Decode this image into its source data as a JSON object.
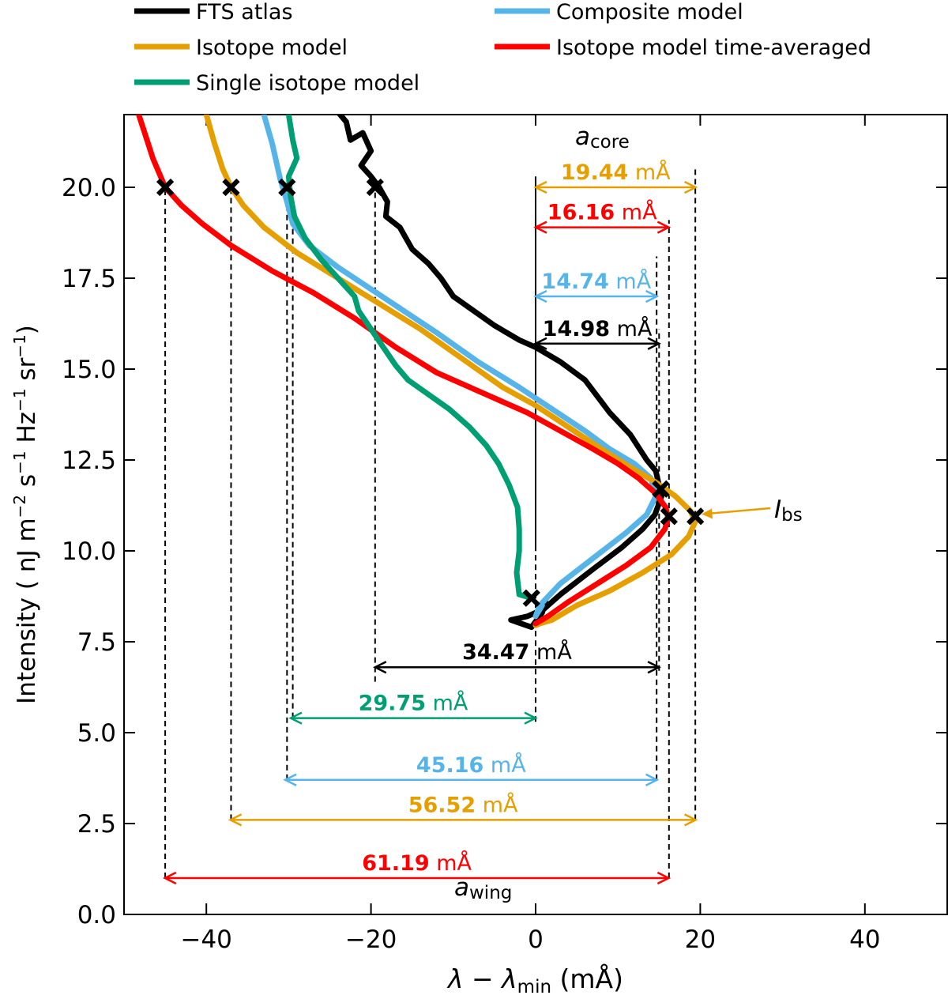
{
  "chart_data": {
    "type": "line",
    "title": "",
    "xlabel": "λ − λ_min (mÅ)",
    "xlabel_parts": {
      "lambda": "λ",
      "minus": " − ",
      "lambda2": "λ",
      "sub": "min",
      "unit": " (mÅ)"
    },
    "ylabel": "Intensity ( nJ m⁻² s⁻¹ Hz⁻¹ sr⁻¹)",
    "ylabel_parts": {
      "pre": "Intensity ( nJ m",
      "e1": "−2",
      "p2": " s",
      "e2": "−1",
      "p3": " Hz",
      "e3": "−1",
      "p4": " sr",
      "e4": "−1",
      "post": ")"
    },
    "xlim": [
      -50,
      50
    ],
    "ylim": [
      0,
      22
    ],
    "xticks": [
      -40,
      -20,
      0,
      20,
      40
    ],
    "xtick_labels": [
      "−40",
      "−20",
      "0",
      "20",
      "40"
    ],
    "yticks": [
      0,
      2.5,
      5,
      7.5,
      10,
      12.5,
      15,
      17.5,
      20
    ],
    "ytick_labels": [
      "0.0",
      "2.5",
      "5.0",
      "7.5",
      "10.0",
      "12.5",
      "15.0",
      "17.5",
      "20.0"
    ],
    "grid": false,
    "legend_position": "top (above plot), two columns",
    "series": [
      {
        "name": "FTS atlas",
        "color": "#000000",
        "points": [
          [
            -24.5,
            22.2
          ],
          [
            -23,
            21.8
          ],
          [
            -22.5,
            21.3
          ],
          [
            -21,
            21.5
          ],
          [
            -20,
            21
          ],
          [
            -21.2,
            20.6
          ],
          [
            -20,
            20.3
          ],
          [
            -19,
            20
          ],
          [
            -18,
            19.6
          ],
          [
            -18.2,
            19.2
          ],
          [
            -16.5,
            18.9
          ],
          [
            -15,
            18.3
          ],
          [
            -13,
            17.9
          ],
          [
            -11.5,
            17.5
          ],
          [
            -10,
            17
          ],
          [
            -7.5,
            16.6
          ],
          [
            -5,
            16.2
          ],
          [
            -2,
            15.8
          ],
          [
            0,
            15.6
          ],
          [
            3,
            15.2
          ],
          [
            6,
            14.7
          ],
          [
            9,
            13.8
          ],
          [
            11.5,
            13.2
          ],
          [
            13.5,
            12.5
          ],
          [
            14.6,
            12.2
          ],
          [
            15,
            11.8
          ],
          [
            15.3,
            11.5
          ],
          [
            14.5,
            11
          ],
          [
            13,
            10.6
          ],
          [
            10.5,
            10.1
          ],
          [
            7,
            9.5
          ],
          [
            3,
            8.8
          ],
          [
            1,
            8.4
          ],
          [
            -1,
            8.2
          ],
          [
            -3,
            8.1
          ],
          [
            -0.5,
            7.9
          ],
          [
            0.8,
            8.3
          ],
          [
            1.2,
            8.6
          ]
        ]
      },
      {
        "name": "Composite model",
        "color": "#56B4E9",
        "points": [
          [
            -33,
            22
          ],
          [
            -32,
            21.2
          ],
          [
            -31,
            20.2
          ],
          [
            -30.2,
            19.6
          ],
          [
            -29.5,
            19
          ],
          [
            -27.5,
            18.4
          ],
          [
            -24,
            17.8
          ],
          [
            -20,
            17.2
          ],
          [
            -16,
            16.6
          ],
          [
            -12,
            16
          ],
          [
            -7,
            15.2
          ],
          [
            -2,
            14.5
          ],
          [
            2,
            13.9
          ],
          [
            6,
            13.3
          ],
          [
            9,
            12.8
          ],
          [
            12,
            12.4
          ],
          [
            14,
            12
          ],
          [
            14.6,
            11.5
          ],
          [
            13.5,
            11
          ],
          [
            11,
            10.5
          ],
          [
            7,
            9.8
          ],
          [
            3,
            9.1
          ],
          [
            0.5,
            8.5
          ],
          [
            0,
            8.2
          ],
          [
            0.8,
            8.5
          ]
        ]
      },
      {
        "name": "Isotope model",
        "color": "#E69F00",
        "points": [
          [
            -40,
            22
          ],
          [
            -39,
            21.2
          ],
          [
            -38,
            20.5
          ],
          [
            -37,
            20
          ],
          [
            -35.5,
            19.5
          ],
          [
            -33,
            18.9
          ],
          [
            -29,
            18.2
          ],
          [
            -24,
            17.5
          ],
          [
            -19,
            16.8
          ],
          [
            -14,
            16.1
          ],
          [
            -9,
            15.3
          ],
          [
            -4,
            14.5
          ],
          [
            0,
            14
          ],
          [
            4,
            13.4
          ],
          [
            8,
            12.8
          ],
          [
            11.5,
            12.3
          ],
          [
            14.5,
            11.9
          ],
          [
            17,
            11.5
          ],
          [
            18.8,
            11.1
          ],
          [
            19.4,
            10.8
          ],
          [
            18.6,
            10.4
          ],
          [
            16.5,
            9.9
          ],
          [
            13,
            9.4
          ],
          [
            9,
            8.9
          ],
          [
            5,
            8.5
          ],
          [
            2,
            8.1
          ],
          [
            0.5,
            8
          ],
          [
            0,
            7.95
          ]
        ]
      },
      {
        "name": "Isotope model time-averaged",
        "color": "#FF0000",
        "points": [
          [
            -48.5,
            22.2
          ],
          [
            -47.5,
            21.5
          ],
          [
            -46.5,
            20.8
          ],
          [
            -45,
            20
          ],
          [
            -43,
            19.5
          ],
          [
            -40.5,
            19
          ],
          [
            -37,
            18.4
          ],
          [
            -32,
            17.7
          ],
          [
            -27,
            17.1
          ],
          [
            -22,
            16.4
          ],
          [
            -17,
            15.6
          ],
          [
            -12,
            14.9
          ],
          [
            -6,
            14.3
          ],
          [
            -1,
            13.8
          ],
          [
            3,
            13.3
          ],
          [
            7,
            12.8
          ],
          [
            10,
            12.4
          ],
          [
            12.5,
            12
          ],
          [
            14.5,
            11.6
          ],
          [
            15.8,
            11.2
          ],
          [
            16.1,
            10.9
          ],
          [
            15.7,
            10.6
          ],
          [
            14,
            10.1
          ],
          [
            11,
            9.6
          ],
          [
            7.5,
            9.1
          ],
          [
            4,
            8.6
          ],
          [
            1.5,
            8.2
          ],
          [
            0,
            8
          ]
        ]
      },
      {
        "name": "Single isotope model",
        "color": "#009E73",
        "points": [
          [
            -30,
            22
          ],
          [
            -29.5,
            21.3
          ],
          [
            -29,
            20.8
          ],
          [
            -30,
            20.3
          ],
          [
            -29.8,
            19.8
          ],
          [
            -29.3,
            19.2
          ],
          [
            -28,
            18.6
          ],
          [
            -26,
            18
          ],
          [
            -24,
            17.5
          ],
          [
            -22,
            17
          ],
          [
            -21.5,
            16.6
          ],
          [
            -20,
            16.1
          ],
          [
            -18.5,
            15.6
          ],
          [
            -17,
            15.1
          ],
          [
            -15.5,
            14.7
          ],
          [
            -13,
            14.3
          ],
          [
            -10.5,
            13.9
          ],
          [
            -8,
            13.4
          ],
          [
            -6,
            12.9
          ],
          [
            -4.5,
            12.4
          ],
          [
            -3.2,
            11.8
          ],
          [
            -2.2,
            11.2
          ],
          [
            -2,
            10.6
          ],
          [
            -2,
            10
          ],
          [
            -2.3,
            9.4
          ],
          [
            -2,
            8.8
          ],
          [
            -0.5,
            8.7
          ]
        ]
      }
    ],
    "markers": [
      {
        "x": -45,
        "y": 20,
        "color": "#000000"
      },
      {
        "x": -37,
        "y": 20,
        "color": "#000000"
      },
      {
        "x": -30.2,
        "y": 20,
        "color": "#000000"
      },
      {
        "x": -19.5,
        "y": 20,
        "color": "#000000"
      },
      {
        "x": 15.2,
        "y": 11.7,
        "color": "#000000"
      },
      {
        "x": 16.2,
        "y": 10.95,
        "color": "#000000"
      },
      {
        "x": 19.4,
        "y": 10.95,
        "color": "#000000"
      },
      {
        "x": -0.5,
        "y": 8.7,
        "color": "#000000"
      }
    ],
    "vlines": [
      {
        "x": -45,
        "y0": 1.0,
        "y1": 20
      },
      {
        "x": -37,
        "y0": 2.6,
        "y1": 20
      },
      {
        "x": -30.2,
        "y0": 3.7,
        "y1": 20
      },
      {
        "x": -29.5,
        "y0": 5.4,
        "y1": 20
      },
      {
        "x": -19.5,
        "y0": 6.4,
        "y1": 20
      },
      {
        "x": 0,
        "y0": 5.3,
        "y1": 20.3,
        "solid_above": 10
      },
      {
        "x": 14.7,
        "y0": 3.7,
        "y1": 18.1
      },
      {
        "x": 15.0,
        "y0": 6.7,
        "y1": 16.1
      },
      {
        "x": 16.2,
        "y0": 1.0,
        "y1": 19.1
      },
      {
        "x": 19.4,
        "y0": 2.6,
        "y1": 20.6
      }
    ],
    "core_arrows": [
      {
        "x0": 0,
        "x1": 19.44,
        "y": 20.0,
        "value": "19.44",
        "unit": " mÅ",
        "color": "#E69F00",
        "unit_color": "#E69F00"
      },
      {
        "x0": 0,
        "x1": 16.16,
        "y": 18.9,
        "value": "16.16",
        "unit": " mÅ",
        "color": "#FF0000",
        "unit_color": "#FF0000"
      },
      {
        "x0": 0,
        "x1": 14.74,
        "y": 17.0,
        "value": "14.74",
        "unit": " mÅ",
        "color": "#56B4E9",
        "unit_color": "#56B4E9"
      },
      {
        "x0": 0,
        "x1": 14.98,
        "y": 15.7,
        "value": "14.98",
        "unit": " mÅ",
        "color": "#000000",
        "unit_color": "#000000"
      }
    ],
    "wing_arrows": [
      {
        "x0": -19.5,
        "x1": 14.98,
        "y": 6.8,
        "value": "34.47",
        "unit": " mÅ",
        "color": "#000000",
        "unit_color": "#000000"
      },
      {
        "x0": -29.75,
        "x1": 0,
        "y": 5.4,
        "value": "29.75",
        "unit": " mÅ",
        "color": "#009E73",
        "unit_color": "#009E73"
      },
      {
        "x0": -30.42,
        "x1": 14.74,
        "y": 3.7,
        "value": "45.16",
        "unit": " mÅ",
        "color": "#56B4E9",
        "unit_color": "#56B4E9"
      },
      {
        "x0": -37.08,
        "x1": 19.44,
        "y": 2.6,
        "value": "56.52",
        "unit": " mÅ",
        "color": "#E69F00",
        "unit_color": "#E69F00"
      },
      {
        "x0": -45.03,
        "x1": 16.16,
        "y": 1.0,
        "value": "61.19",
        "unit": " mÅ",
        "color": "#FF0000",
        "unit_color": "#FF0000"
      }
    ],
    "annotations": {
      "a_core": {
        "main": "a",
        "sub": "core"
      },
      "a_wing": {
        "main": "a",
        "sub": "wing"
      },
      "I_bs": {
        "main": "I",
        "sub": "bs",
        "color": "#E69F00"
      }
    },
    "legend": [
      {
        "label": "FTS atlas",
        "color": "#000000"
      },
      {
        "label": "Composite model",
        "color": "#56B4E9"
      },
      {
        "label": "Isotope model",
        "color": "#E69F00"
      },
      {
        "label": "Isotope model time-averaged",
        "color": "#FF0000"
      },
      {
        "label": "Single isotope model",
        "color": "#009E73"
      }
    ]
  }
}
